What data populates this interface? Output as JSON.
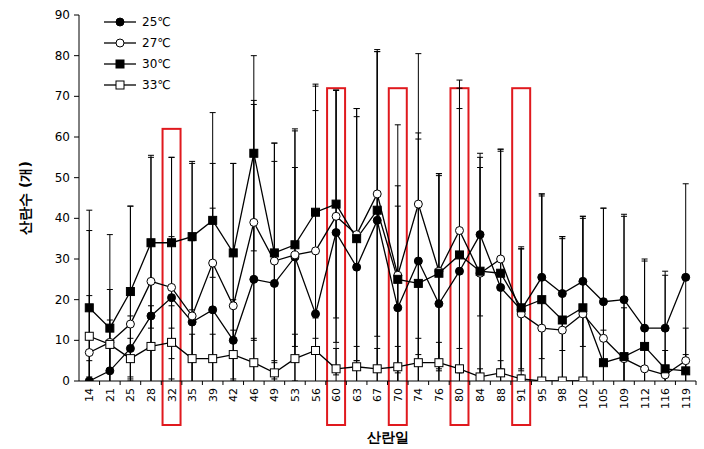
{
  "chart_data": {
    "type": "line",
    "x_label": "산란일",
    "y_label": "산란수 (개)",
    "categories": [
      "14",
      "21",
      "25",
      "28",
      "32",
      "35",
      "39",
      "42",
      "46",
      "49",
      "53",
      "56",
      "60",
      "63",
      "67",
      "70",
      "74",
      "76",
      "80",
      "84",
      "88",
      "91",
      "95",
      "98",
      "102",
      "105",
      "109",
      "112",
      "116",
      "119"
    ],
    "ylim": [
      0,
      90
    ],
    "yticks": [
      0,
      10,
      20,
      30,
      40,
      50,
      60,
      70,
      80,
      90
    ],
    "grid": false,
    "legend": "upper-left",
    "series": [
      {
        "name": "25℃",
        "color": "#000000",
        "marker": "circle",
        "values": [
          0,
          2.5,
          8,
          16,
          20.5,
          14.5,
          17.5,
          10,
          25,
          24,
          30.5,
          16.5,
          36.5,
          28,
          39.5,
          18,
          29.5,
          19,
          27,
          36,
          23,
          17.5,
          25.5,
          21.5,
          24.5,
          19.5,
          20,
          13,
          13,
          25.5
        ],
        "errors": [
          5,
          10,
          8,
          18,
          15,
          20,
          25,
          10,
          44,
          30,
          22,
          50,
          35,
          39,
          42,
          25,
          30,
          32,
          40,
          20,
          34,
          15,
          20,
          14,
          16,
          23,
          21,
          17,
          14,
          23
        ]
      },
      {
        "name": "27℃",
        "color": "#000000",
        "marker": "open-circle",
        "values": [
          7,
          9.5,
          14,
          24.5,
          23,
          16,
          29,
          18.5,
          39,
          29.5,
          31,
          32,
          40.5,
          36,
          46,
          26,
          43.5,
          27,
          37,
          26.5,
          30,
          16.5,
          13,
          12.5,
          16.5,
          10.5,
          5.5,
          3,
          1.5,
          5
        ],
        "errors": [
          30,
          13,
          29,
          31,
          32,
          38,
          37,
          35,
          29,
          29,
          31,
          41,
          31,
          31,
          35,
          37,
          37,
          24,
          35,
          26,
          27,
          16,
          33,
          23,
          24,
          32,
          35,
          10,
          6,
          8
        ]
      },
      {
        "name": "30℃",
        "color": "#000000",
        "marker": "square",
        "values": [
          18,
          13,
          22,
          34,
          34,
          35.5,
          39.5,
          31.5,
          56,
          31.5,
          33.5,
          41.5,
          43.5,
          35,
          42,
          25,
          24,
          26.5,
          31,
          27,
          26.5,
          18,
          20,
          15,
          18,
          4.5,
          6,
          8.5,
          3,
          2.5
        ],
        "errors": [
          24,
          23,
          21,
          21,
          21,
          18,
          14,
          22,
          24,
          27,
          28,
          31,
          28,
          30,
          39,
          23,
          37,
          24,
          43,
          28,
          30,
          15,
          26,
          20,
          22,
          8,
          12,
          21,
          23,
          4
        ]
      },
      {
        "name": "33℃",
        "color": "#000000",
        "marker": "open-square",
        "values": [
          11,
          9,
          5.5,
          8.5,
          9.5,
          5.5,
          5.5,
          6.5,
          4.5,
          2,
          5.5,
          7.5,
          3,
          3.5,
          3,
          3.5,
          4.5,
          4.5,
          3,
          1,
          2,
          0.5,
          0,
          0,
          0,
          null,
          null,
          null,
          null,
          null
        ],
        "errors": [
          10,
          6,
          5,
          10,
          9,
          6,
          6,
          6,
          6,
          3,
          6,
          8,
          5,
          5,
          5,
          5,
          6,
          5,
          5,
          2,
          3,
          1,
          0.5,
          0.5,
          0.5,
          null,
          null,
          null,
          null,
          null
        ]
      }
    ],
    "highlights": [
      {
        "category": "32",
        "top": 62
      },
      {
        "category": "60",
        "top": 72
      },
      {
        "category": "70",
        "top": 72
      },
      {
        "category": "80",
        "top": 72
      },
      {
        "category": "91",
        "top": 72
      }
    ]
  }
}
